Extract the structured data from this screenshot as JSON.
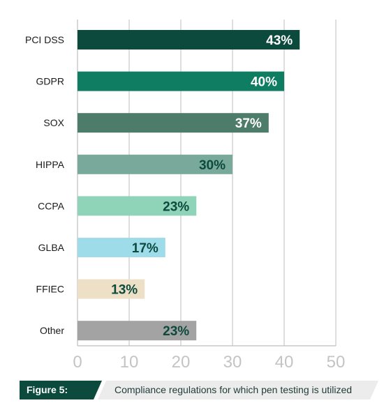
{
  "chart_data": {
    "type": "bar",
    "orientation": "horizontal",
    "categories": [
      "PCI DSS",
      "GDPR",
      "SOX",
      "HIPPA",
      "CCPA",
      "GLBA",
      "FFIEC",
      "Other"
    ],
    "values": [
      43,
      40,
      37,
      30,
      23,
      17,
      13,
      23
    ],
    "value_labels": [
      "43%",
      "40%",
      "37%",
      "30%",
      "23%",
      "17%",
      "13%",
      "23%"
    ],
    "bar_colors": [
      "#0b4a3d",
      "#0e7d62",
      "#4e7c6a",
      "#78a99a",
      "#8fd3b8",
      "#9fdcea",
      "#ede0c7",
      "#a3a3a3"
    ],
    "label_colors": [
      "#ffffff",
      "#ffffff",
      "#ffffff",
      "#0b4a3d",
      "#0b4a3d",
      "#0b4a3d",
      "#0b4a3d",
      "#0b4a3d"
    ],
    "xlim": [
      0,
      50
    ],
    "xticks": [
      0,
      10,
      20,
      30,
      40,
      50
    ],
    "grid": true,
    "title": "",
    "xlabel": "",
    "ylabel": ""
  },
  "caption": {
    "tag": "Figure 5:",
    "text": "Compliance regulations for which pen testing is utilized"
  }
}
